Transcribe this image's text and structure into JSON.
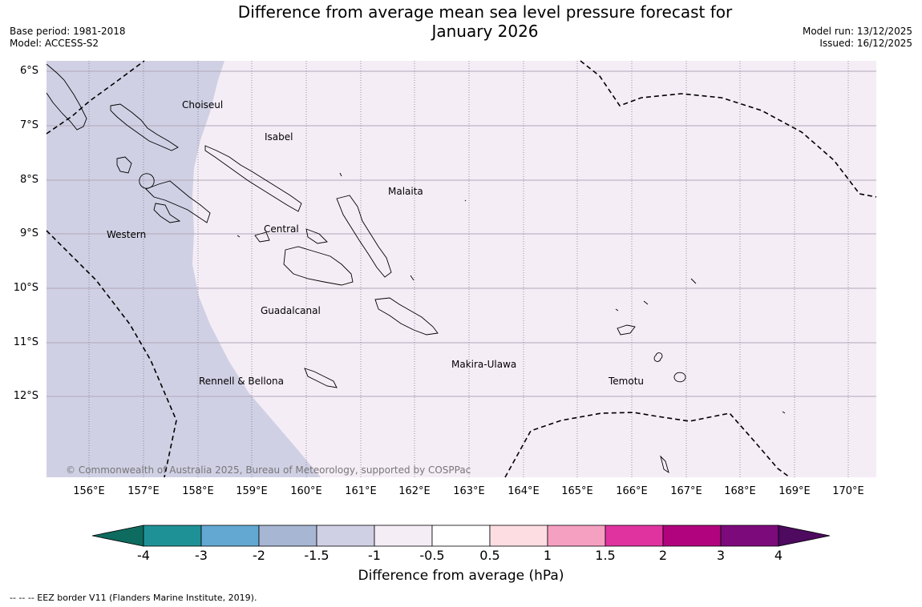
{
  "title_line1": "Difference from average mean sea level pressure forecast for",
  "title_line2": "January 2026",
  "meta_left": [
    "Base period: 1981-2018",
    "Model: ACCESS-S2"
  ],
  "meta_right": [
    "Model run: 13/12/2025",
    "Issued: 16/12/2025"
  ],
  "latitudes": [
    "6°S",
    "7°S",
    "8°S",
    "9°S",
    "10°S",
    "11°S",
    "12°S"
  ],
  "longitudes": [
    "156°E",
    "157°E",
    "158°E",
    "159°E",
    "160°E",
    "161°E",
    "162°E",
    "163°E",
    "164°E",
    "165°E",
    "166°E",
    "167°E",
    "168°E",
    "169°E",
    "170°E"
  ],
  "places": [
    "Choiseul",
    "Isabel",
    "Malaita",
    "Western",
    "Central",
    "Guadalcanal",
    "Makira-Ulawa",
    "Rennell & Bellona",
    "Temotu"
  ],
  "copyright": "© Commonwealth of Australia 2025, Bureau of Meteorology, supported by COSPPac",
  "colorbar": {
    "ticks": [
      "-4",
      "-3",
      "-2",
      "-1.5",
      "-1",
      "-0.5",
      "0.5",
      "1",
      "1.5",
      "2",
      "3",
      "4"
    ],
    "colors": [
      "#0e6b5f",
      "#1e9196",
      "#63a8d3",
      "#a7b6d3",
      "#d0d0e5",
      "#f5edf6",
      "#ffffff",
      "#fedde2",
      "#f6a0c1",
      "#e033a0",
      "#b1037e",
      "#7d0a7b",
      "#4d0a5f"
    ],
    "label": "Difference from average (hPa)"
  },
  "map": {
    "fill_dominant": "#f5edf6",
    "fill_west": "#d0d0e5",
    "value_west_band_hPa": "-1.5 to -1",
    "value_east_hPa": "-1 to -0.5"
  },
  "footnote": "--  --  -- EEZ border V11 (Flanders Marine Institute, 2019)."
}
